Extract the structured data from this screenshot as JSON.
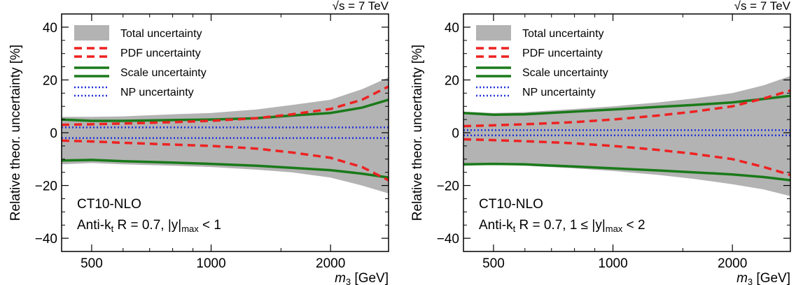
{
  "chart_data": [
    {
      "type": "area",
      "energy_label": "√s = 7 TeV",
      "ylabel": "Relative theor. uncertainty [%]",
      "xlabel_var": "m",
      "xlabel_sub": "3",
      "xlabel_unit": "[GeV]",
      "xscale": "log",
      "xlim": [
        420,
        2800
      ],
      "ylim": [
        -45,
        45
      ],
      "xticks": [
        500,
        1000,
        2000
      ],
      "xtick_labels": [
        "500",
        "1000",
        "2000"
      ],
      "yticks": [
        -40,
        -20,
        0,
        20,
        40
      ],
      "ytick_labels": [
        "−40",
        "−20",
        "0",
        "20",
        "40"
      ],
      "grid": false,
      "legend_position": "top-left",
      "legend": [
        {
          "label": "Total uncertainty",
          "style": "band",
          "color": "#b3b3b3"
        },
        {
          "label": "PDF uncertainty",
          "style": "dashed",
          "color": "#ee2222"
        },
        {
          "label": "Scale uncertainty",
          "style": "solid",
          "color": "#1a7a1a"
        },
        {
          "label": "NP uncertainty",
          "style": "dotted",
          "color": "#2233dd"
        }
      ],
      "annotation_line1": "CT10-NLO",
      "annotation_line2": "Anti-k",
      "annotation_line2_sub": "t",
      "annotation_line2_rest": " R = 0.7, |y|",
      "annotation_line2_sub2": "max",
      "annotation_line2_end": " < 1",
      "x": [
        420,
        500,
        600,
        800,
        1000,
        1300,
        1600,
        2000,
        2400,
        2800
      ],
      "series": [
        {
          "name": "Total uncertainty",
          "upper": [
            6,
            6,
            6.2,
            7,
            7.5,
            8.8,
            10.5,
            12.5,
            16.5,
            21
          ],
          "lower": [
            -12,
            -11.5,
            -12,
            -12.5,
            -13,
            -14,
            -15,
            -17,
            -20,
            -23
          ]
        },
        {
          "name": "PDF uncertainty",
          "upper": [
            3,
            3.2,
            3.5,
            4,
            4.5,
            5.5,
            7,
            9,
            12.5,
            17.5
          ],
          "lower": [
            -3,
            -3.3,
            -3.8,
            -4.5,
            -5,
            -6,
            -7.5,
            -9.5,
            -13,
            -18
          ]
        },
        {
          "name": "Scale uncertainty",
          "upper": [
            5,
            4.5,
            4.5,
            4.8,
            5,
            5.5,
            6.5,
            7.5,
            9.5,
            12.5
          ],
          "lower": [
            -10.5,
            -10.3,
            -10.8,
            -11.3,
            -11.8,
            -12.5,
            -13.3,
            -14.2,
            -15.5,
            -17
          ]
        },
        {
          "name": "NP uncertainty",
          "upper": [
            2,
            2,
            2,
            2,
            2,
            2,
            2,
            2,
            2,
            2
          ],
          "lower": [
            -2,
            -2,
            -2,
            -2,
            -2,
            -2,
            -2,
            -2,
            -2,
            -2
          ]
        }
      ]
    },
    {
      "type": "area",
      "energy_label": "√s = 7 TeV",
      "ylabel": "Relative theor. uncertainty [%]",
      "xlabel_var": "m",
      "xlabel_sub": "3",
      "xlabel_unit": "[GeV]",
      "xscale": "log",
      "xlim": [
        420,
        2800
      ],
      "ylim": [
        -45,
        45
      ],
      "xticks": [
        500,
        1000,
        2000
      ],
      "xtick_labels": [
        "500",
        "1000",
        "2000"
      ],
      "yticks": [
        -40,
        -20,
        0,
        20,
        40
      ],
      "ytick_labels": [
        "−40",
        "−20",
        "0",
        "20",
        "40"
      ],
      "grid": false,
      "legend_position": "top-left",
      "legend": [
        {
          "label": "Total uncertainty",
          "style": "band",
          "color": "#b3b3b3"
        },
        {
          "label": "PDF uncertainty",
          "style": "dashed",
          "color": "#ee2222"
        },
        {
          "label": "Scale uncertainty",
          "style": "solid",
          "color": "#1a7a1a"
        },
        {
          "label": "NP uncertainty",
          "style": "dotted",
          "color": "#2233dd"
        }
      ],
      "annotation_line1": "CT10-NLO",
      "annotation_line2": "Anti-k",
      "annotation_line2_sub": "t",
      "annotation_line2_rest": " R = 0.7, 1 ≤ |y|",
      "annotation_line2_sub2": "max",
      "annotation_line2_end": " < 2",
      "x": [
        420,
        500,
        600,
        800,
        1000,
        1300,
        1600,
        2000,
        2400,
        2800
      ],
      "series": [
        {
          "name": "Total uncertainty",
          "upper": [
            8,
            7.5,
            7.8,
            9,
            10,
            11.5,
            13,
            15,
            18,
            21.5
          ],
          "lower": [
            -12.5,
            -12,
            -12.5,
            -13.5,
            -14.5,
            -16,
            -17.5,
            -19.5,
            -21.5,
            -24
          ]
        },
        {
          "name": "PDF uncertainty",
          "upper": [
            2.5,
            2.8,
            3.2,
            4,
            5,
            6.5,
            8,
            10,
            13,
            16
          ],
          "lower": [
            -2.5,
            -2.8,
            -3.2,
            -4,
            -5,
            -6.5,
            -8,
            -10,
            -13,
            -16
          ]
        },
        {
          "name": "Scale uncertainty",
          "upper": [
            7.5,
            6.8,
            7,
            8,
            8.8,
            9.8,
            10.5,
            11.5,
            12.8,
            14
          ],
          "lower": [
            -12,
            -11.8,
            -12,
            -12.8,
            -13.5,
            -14.3,
            -15,
            -15.8,
            -16.8,
            -18
          ]
        },
        {
          "name": "NP uncertainty",
          "upper": [
            1,
            1,
            1,
            1,
            1,
            1,
            1,
            1,
            1,
            1
          ],
          "lower": [
            -1,
            -1,
            -1,
            -1,
            -1,
            -1,
            -1,
            -1,
            -1,
            -1
          ]
        }
      ]
    }
  ]
}
